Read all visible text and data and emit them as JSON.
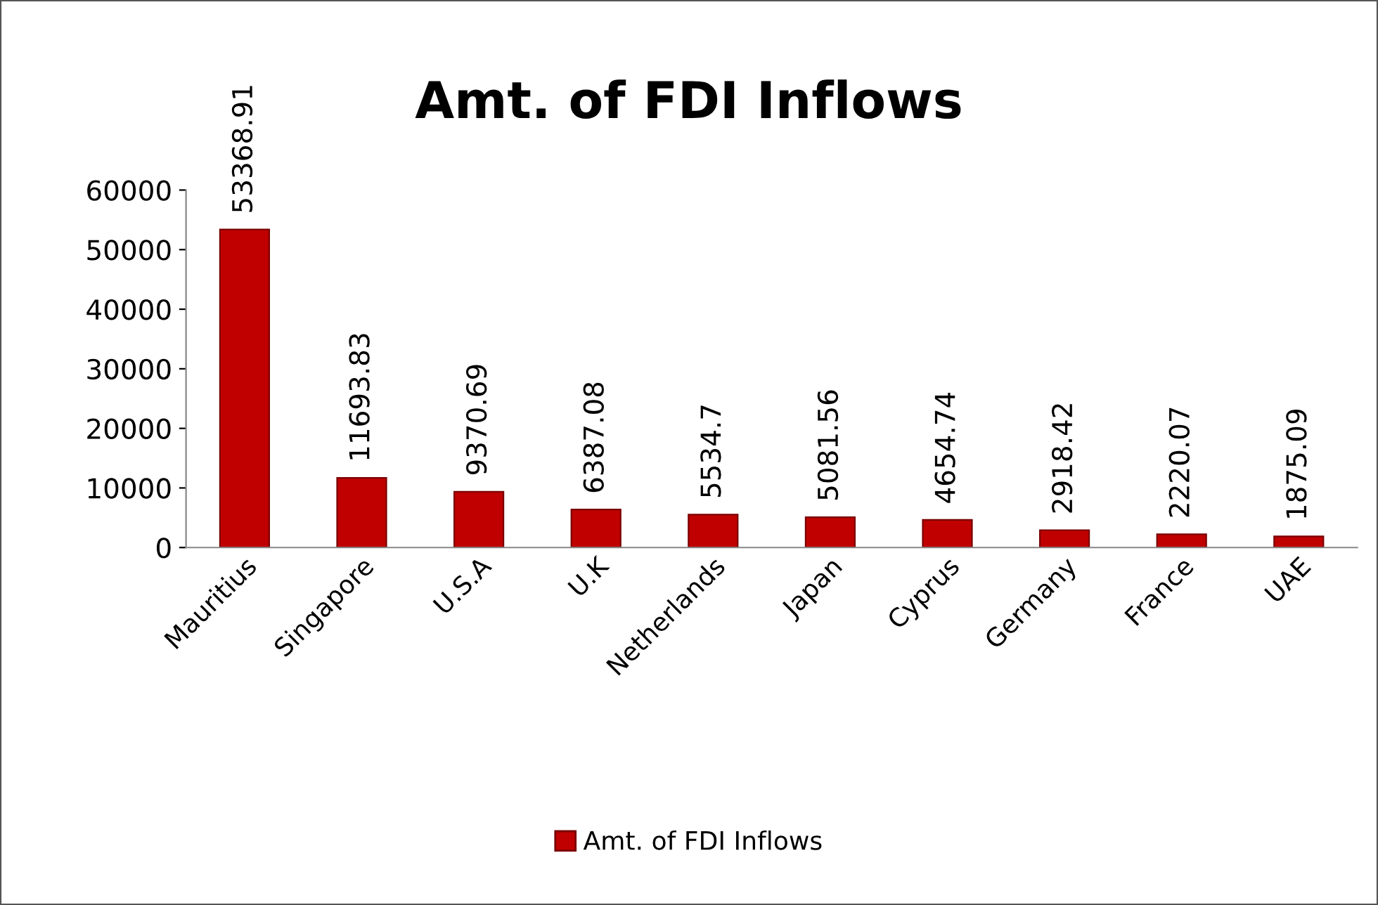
{
  "chart_data": {
    "type": "bar",
    "title": "Amt. of FDI Inflows",
    "categories": [
      "Mauritius",
      "Singapore",
      "U.S.A",
      "U.K",
      "Netherlands",
      "Japan",
      "Cyprus",
      "Germany",
      "France",
      "UAE"
    ],
    "series": [
      {
        "name": "Amt. of FDI Inflows",
        "color": "#c00000",
        "values": [
          53368.91,
          11693.83,
          9370.69,
          6387.08,
          5534.7,
          5081.56,
          4654.74,
          2918.42,
          2220.07,
          1875.09
        ]
      }
    ],
    "ylim": [
      0,
      60000
    ],
    "yticks": [
      0,
      10000,
      20000,
      30000,
      40000,
      50000,
      60000
    ],
    "data_labels": true,
    "legend": "bottom",
    "grid": false
  }
}
